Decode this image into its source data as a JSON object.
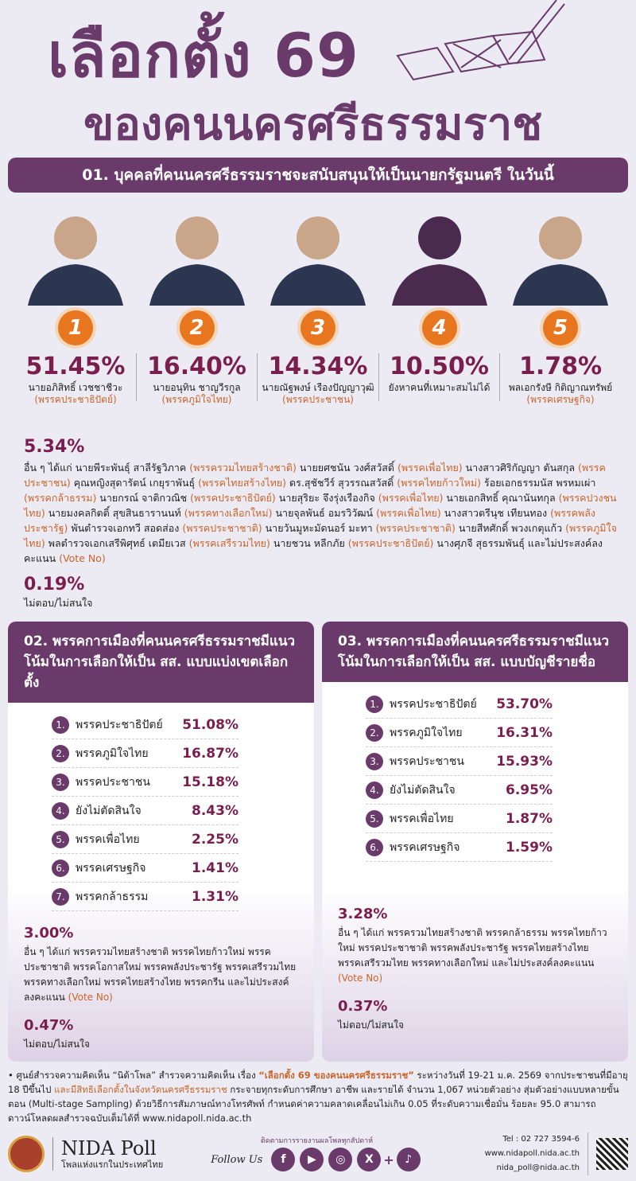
{
  "title": {
    "line1": "เลือกตั้ง 69",
    "line2": "ของคนนครศรีธรรมราช"
  },
  "q1": {
    "heading": "01. บุคคลที่คนนครศรีธรรมราชจะสนับสนุนให้เป็นนายกรัฐมนตรี ในวันนี้",
    "candidates": [
      {
        "rank": "1",
        "pct": "51.45%",
        "name": "นายอภิสิทธิ์ เวชชาชีวะ",
        "party": "(พรรคประชาธิปัตย์)"
      },
      {
        "rank": "2",
        "pct": "16.40%",
        "name": "นายอนุทิน ชาญวีรกูล",
        "party": "(พรรคภูมิใจไทย)"
      },
      {
        "rank": "3",
        "pct": "14.34%",
        "name": "นายณัฐพงษ์ เรืองปัญญาวุฒิ",
        "party": "(พรรคประชาชน)"
      },
      {
        "rank": "4",
        "pct": "10.50%",
        "name": "ยังหาคนที่เหมาะสมไม่ได้",
        "party": ""
      },
      {
        "rank": "5",
        "pct": "1.78%",
        "name": "พลเอกรังษี กิติญาณทรัพย์",
        "party": "(พรรคเศรษฐกิจ)"
      }
    ],
    "others_pct": "5.34%",
    "others_text": [
      [
        "อื่น ๆ ได้แก่ นายพีระพันธุ์ สาลีรัฐวิภาค ",
        "(พรรครวมไทยสร้างชาติ)",
        " นายยศชนัน วงศ์สวัสดิ์ ",
        "(พรรคเพื่อไทย)",
        " นางสาวศิริกัญญา ตันสกุล ",
        "(พรรคประชาชน)",
        " คุณหญิงสุดารัตน์ เกยุราพันธุ์ ",
        "(พรรคไทยสร้างไทย)",
        " ดร.สุชัชวีร์ สุวรรณสวัสดิ์ ",
        "(พรรคไทยก้าวใหม่)",
        " ร้อยเอกธรรมนัส พรหมเผ่า ",
        "(พรรคกล้าธรรม)",
        " นายกรณ์ จาติกวณิช ",
        "(พรรคประชาธิปัตย์)",
        " นายสุริยะ จึงรุ่งเรืองกิจ ",
        "(พรรคเพื่อไทย)",
        " นายเอกสิทธิ์ คุณานันทกุล ",
        "(พรรคปวงชนไทย)",
        " นายมงคลกิตติ์ สุขสินธารานนท์ ",
        "(พรรคทางเลือกใหม่)",
        " นายจุลพันธ์ อมรวิวัฒน์ ",
        "(พรรคเพื่อไทย)",
        " นางสาวตรีนุช เทียนทอง ",
        "(พรรคพลังประชารัฐ)",
        " พันตำรวจเอกทวี สอดส่อง ",
        "(พรรคประชาชาติ)",
        " นายวันมูหะมัดนอร์ มะทา ",
        "(พรรคประชาชาติ)",
        " นายสีหศักดิ์ พวงเกตุแก้ว ",
        "(พรรคภูมิใจไทย)",
        " พลตำรวจเอกเสรีพิศุทธ์ เตมียเวส ",
        "(พรรคเสรีรวมไทย)",
        " นายชวน หลีกภัย ",
        "(พรรคประชาธิปัตย์)",
        " นางศุภจี สุธรรมพันธุ์ และไม่ประสงค์ลงคะแนน ",
        "(Vote No)"
      ]
    ],
    "noanswer_pct": "0.19%",
    "noanswer_label": "ไม่ตอบ/ไม่สนใจ"
  },
  "q2": {
    "heading": "02. พรรคการเมืองที่คนนครศรีธรรมราชมีแนวโน้มในการเลือกให้เป็น สส. แบบแบ่งเขตเลือกตั้ง",
    "rows": [
      {
        "n": "1.",
        "label": "พรรคประชาธิปัตย์",
        "value": "51.08%"
      },
      {
        "n": "2.",
        "label": "พรรคภูมิใจไทย",
        "value": "16.87%"
      },
      {
        "n": "3.",
        "label": "พรรคประชาชน",
        "value": "15.18%"
      },
      {
        "n": "4.",
        "label": "ยังไม่ตัดสินใจ",
        "value": "8.43%"
      },
      {
        "n": "5.",
        "label": "พรรคเพื่อไทย",
        "value": "2.25%"
      },
      {
        "n": "6.",
        "label": "พรรคเศรษฐกิจ",
        "value": "1.41%"
      },
      {
        "n": "7.",
        "label": "พรรคกล้าธรรม",
        "value": "1.31%"
      }
    ],
    "others_pct": "3.00%",
    "others_text": "อื่น ๆ ได้แก่ พรรครวมไทยสร้างชาติ พรรคไทยก้าวใหม่ พรรคประชาชาติ พรรคโอกาสใหม่ พรรคพลังประชารัฐ พรรคเสรีรวมไทย พรรคทางเลือกใหม่ พรรคไทยสร้างไทย พรรคกรีน และไม่ประสงค์ลงคะแนน",
    "vote_no": "(Vote No)",
    "noanswer_pct": "0.47%",
    "noanswer_label": "ไม่ตอบ/ไม่สนใจ"
  },
  "q3": {
    "heading": "03. พรรคการเมืองที่คนนครศรีธรรมราชมีแนวโน้มในการเลือกให้เป็น สส. แบบบัญชีรายชื่อ",
    "rows": [
      {
        "n": "1.",
        "label": "พรรคประชาธิปัตย์",
        "value": "53.70%"
      },
      {
        "n": "2.",
        "label": "พรรคภูมิใจไทย",
        "value": "16.31%"
      },
      {
        "n": "3.",
        "label": "พรรคประชาชน",
        "value": "15.93%"
      },
      {
        "n": "4.",
        "label": "ยังไม่ตัดสินใจ",
        "value": "6.95%"
      },
      {
        "n": "5.",
        "label": "พรรคเพื่อไทย",
        "value": "1.87%"
      },
      {
        "n": "6.",
        "label": "พรรคเศรษฐกิจ",
        "value": "1.59%"
      }
    ],
    "others_pct": "3.28%",
    "others_text": "อื่น ๆ ได้แก่ พรรครวมไทยสร้างชาติ พรรคกล้าธรรม พรรคไทยก้าวใหม่ พรรคประชาชาติ พรรคพลังประชารัฐ พรรคไทยสร้างไทย พรรคเสรีรวมไทย พรรคทางเลือกใหม่ และไม่ประสงค์ลงคะแนน",
    "vote_no": "(Vote No)",
    "noanswer_pct": "0.37%",
    "noanswer_label": "ไม่ตอบ/ไม่สนใจ"
  },
  "note": {
    "a": "• ศูนย์สำรวจความคิดเห็น “นิด้าโพล” สำรวจความคิดเห็น เรื่อง ",
    "b": "“เลือกตั้ง 69 ของคนนครศรีธรรมราช”",
    "c": " ระหว่างวันที่ 19-21 ม.ค. 2569 จากประชาชนที่มีอายุ 18 ปีขึ้นไป ",
    "d": "และมีสิทธิเลือกตั้งในจังหวัดนครศรีธรรมราช",
    "e": " กระจายทุกระดับการศึกษา อาชีพ และรายได้ จำนวน 1,067 หน่วยตัวอย่าง สุ่มตัวอย่างแบบหลายขั้นตอน (Multi-stage Sampling) ด้วยวิธีการสัมภาษณ์ทางโทรศัพท์ กำหนดค่าความคลาดเคลื่อนไม่เกิน 0.05 ที่ระดับความเชื่อมั่น ร้อยละ 95.0 สามารถดาวน์โหลดผลสำรวจฉบับเต็มได้ที่ www.nidapoll.nida.ac.th"
  },
  "footer": {
    "brand": "NIDA Poll",
    "tagline": "โพลแห่งแรกในประเทศไทย",
    "follow_caption": "ติดตามการรายงานผลโพลทุกสัปดาห์",
    "follow": "Follow Us",
    "tel": "Tel : 02 727 3594-6",
    "web": "www.nidapoll.nida.ac.th",
    "email": "nida_poll@nida.ac.th",
    "social": [
      "facebook-icon",
      "youtube-icon",
      "instagram-icon",
      "x-icon",
      "tiktok-icon"
    ]
  },
  "colors": {
    "purple": "#6a3a6b",
    "maroon": "#7a1e4d",
    "orange": "#e8761e",
    "party": "#c8642a"
  }
}
